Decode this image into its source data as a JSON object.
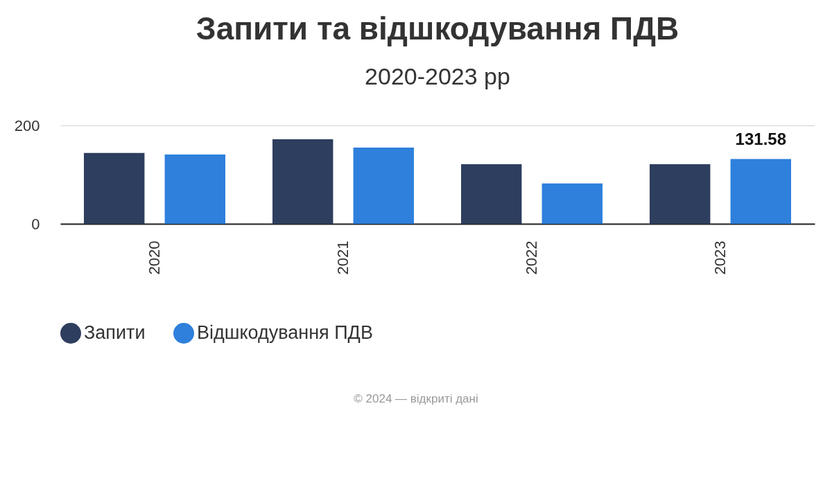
{
  "chart_data": {
    "type": "bar",
    "title": "Запити та відшкодування ПДВ",
    "subtitle": "2020-2023 рр",
    "categories": [
      "2020",
      "2021",
      "2022",
      "2023"
    ],
    "series": [
      {
        "name": "Запити",
        "color": "#2e3e5e",
        "values": [
          144,
          172,
          121,
          121
        ]
      },
      {
        "name": "Відшкодування ПДВ",
        "color": "#2e80dc",
        "values": [
          141,
          155,
          82,
          131.58
        ],
        "value_labels": [
          null,
          null,
          null,
          "131.58"
        ]
      }
    ],
    "ylim": [
      0,
      200
    ],
    "yticks": [
      0,
      200
    ],
    "grid": "y",
    "legend": "bottom",
    "annotations": [
      "© 2024 — відкриті дані"
    ]
  }
}
